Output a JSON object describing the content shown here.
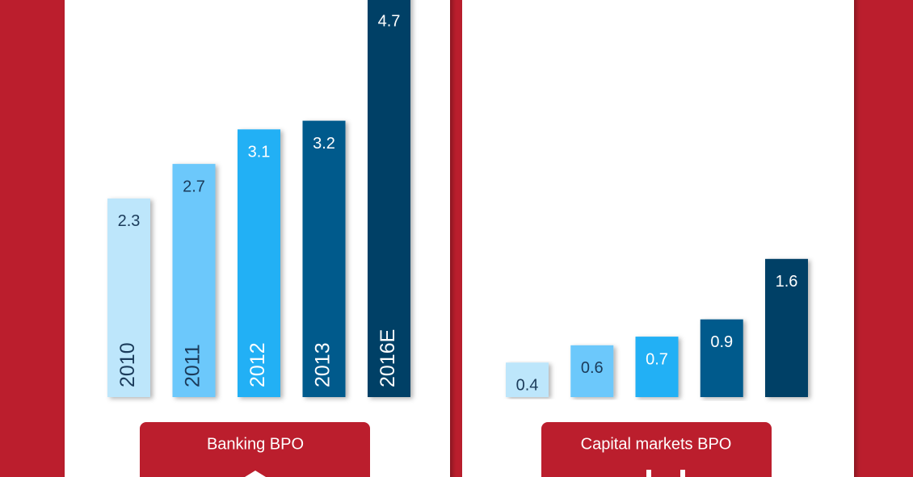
{
  "chart_data": [
    {
      "type": "bar",
      "title": "Banking BPO",
      "categories": [
        "2010",
        "2011",
        "2012",
        "2013",
        "2016E"
      ],
      "values": [
        2.3,
        2.7,
        3.1,
        3.2,
        4.7
      ],
      "colors": [
        "#bde6fb",
        "#6cc8fb",
        "#22b0f5",
        "#005a8c",
        "#003f66"
      ]
    },
    {
      "type": "bar",
      "title": "Capital markets BPO",
      "values": [
        0.4,
        0.6,
        0.7,
        0.9,
        1.6
      ],
      "colors": [
        "#bde6fb",
        "#6cc8fb",
        "#22b0f5",
        "#005a8c",
        "#003f66"
      ]
    }
  ]
}
